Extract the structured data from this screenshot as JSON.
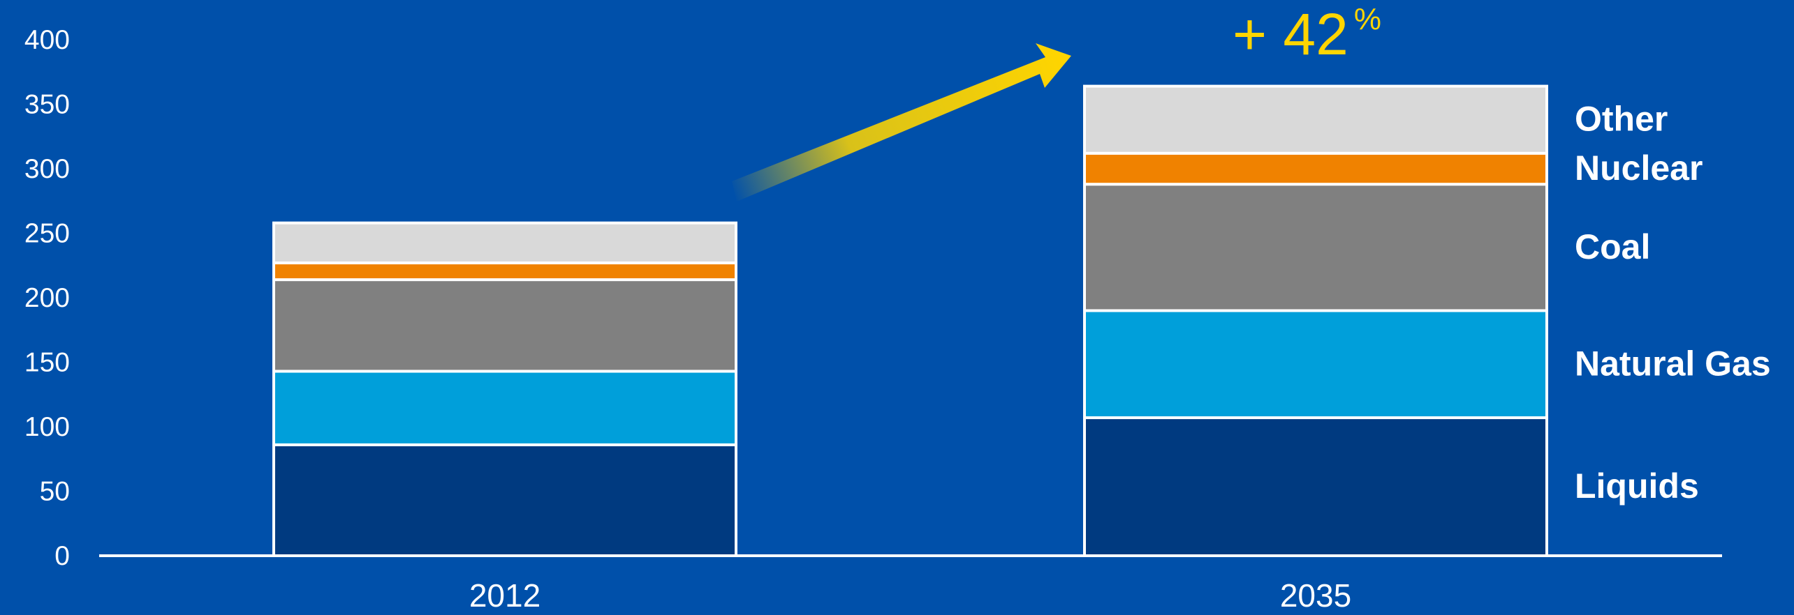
{
  "chart_data": {
    "type": "bar",
    "stacked": true,
    "categories": [
      "2012",
      "2035"
    ],
    "series": [
      {
        "name": "Liquids",
        "values": [
          86,
          107
        ],
        "color": "#003A80"
      },
      {
        "name": "Natural Gas",
        "values": [
          57,
          83
        ],
        "color": "#009FDA"
      },
      {
        "name": "Coal",
        "values": [
          71,
          98
        ],
        "color": "#808080"
      },
      {
        "name": "Nuclear",
        "values": [
          13,
          24
        ],
        "color": "#F08200"
      },
      {
        "name": "Other",
        "values": [
          31,
          52
        ],
        "color": "#D9D9D9"
      }
    ],
    "ylim": [
      0,
      400
    ],
    "yticks": [
      "0",
      "50",
      "100",
      "150",
      "200",
      "250",
      "300",
      "350",
      "400"
    ],
    "grid": false,
    "legend": "right, labels beside 2035 bar",
    "annotation": {
      "text": "+ 42",
      "suffix": "%",
      "color": "#FFD500"
    }
  },
  "colors": {
    "background": "#0050AA",
    "axis": "#FFFFFF",
    "text": "#FFFFFF",
    "arrow": "#FFD500",
    "bar_outline": "#FFFFFF"
  },
  "icons": {
    "growth_arrow": "arrow-up-right-icon"
  }
}
